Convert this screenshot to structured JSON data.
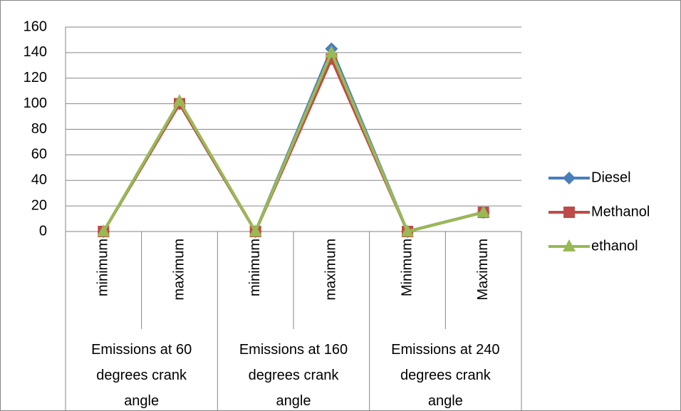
{
  "chart_data": {
    "type": "line",
    "categories": [
      "minimum",
      "maximum",
      "minimum",
      "maximum",
      "Minimum",
      "Maximum"
    ],
    "groups": [
      "Emissions at 60 degrees crank angle",
      "Emissions at 160 degrees crank angle",
      "Emissions at 240 degrees crank angle"
    ],
    "series": [
      {
        "name": "Diesel",
        "color": "#4a7ebb",
        "marker": "diamond",
        "values": [
          0,
          100,
          0,
          143,
          0,
          15
        ]
      },
      {
        "name": "Methanol",
        "color": "#be4b48",
        "marker": "square",
        "values": [
          0,
          100,
          0,
          135,
          0,
          15
        ]
      },
      {
        "name": "ethanol",
        "color": "#98b954",
        "marker": "triangle",
        "values": [
          0,
          102,
          0,
          140,
          0,
          15
        ]
      }
    ],
    "ylim": [
      0,
      160
    ],
    "yticks": [
      0,
      20,
      40,
      60,
      80,
      100,
      120,
      140,
      160
    ],
    "grid": true,
    "legend": "right"
  }
}
